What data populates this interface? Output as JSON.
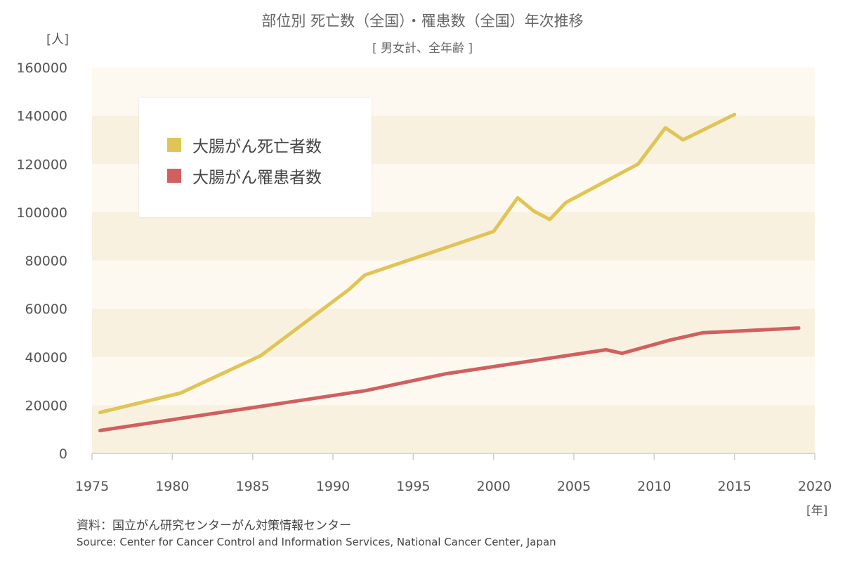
{
  "title": "部位別 死亡数（全国）・罹患数（全国）年次推移",
  "subtitle": "[ 男女計、全年齢 ]",
  "y_unit": "[人]",
  "x_unit": "[年]",
  "source_ja": "資料：国立がん研究センターがん対策情報センター",
  "source_en": "Source: Center for Cancer Control and Information Services, National Cancer Center, Japan",
  "colors": {
    "plot_bg": "#fdf9f0",
    "band": "#f8f1e0",
    "axis": "#cccccc",
    "series_yellow": "#e0c455",
    "series_red": "#d25f5f"
  },
  "chart_data": {
    "type": "line",
    "xlim": [
      1975,
      2020
    ],
    "ylim": [
      0,
      160000
    ],
    "x_ticks": [
      "1975",
      "1980",
      "1985",
      "1990",
      "1995",
      "2000",
      "2005",
      "2010",
      "2015",
      "2020"
    ],
    "y_ticks": [
      "0",
      "20000",
      "40000",
      "60000",
      "80000",
      "100000",
      "120000",
      "140000",
      "160000"
    ],
    "legend_position": "top-left",
    "series": [
      {
        "name": "大腸がん死亡者数",
        "color": "#e0c455",
        "points": [
          [
            1975.5,
            17000
          ],
          [
            1980.5,
            25000
          ],
          [
            1985.5,
            40500
          ],
          [
            1991,
            68000
          ],
          [
            1992,
            74000
          ],
          [
            2000,
            92000
          ],
          [
            2001.5,
            106000
          ],
          [
            2002.5,
            100500
          ],
          [
            2003.5,
            97000
          ],
          [
            2004.5,
            104000
          ],
          [
            2009,
            120000
          ],
          [
            2010.7,
            135000
          ],
          [
            2011.8,
            130000
          ],
          [
            2015,
            140500
          ]
        ]
      },
      {
        "name": "大腸がん罹患者数",
        "color": "#d25f5f",
        "points": [
          [
            1975.5,
            9500
          ],
          [
            1980.5,
            14500
          ],
          [
            1985.5,
            19500
          ],
          [
            1992,
            26000
          ],
          [
            1997,
            33000
          ],
          [
            2000,
            36000
          ],
          [
            2007,
            43000
          ],
          [
            2008,
            41500
          ],
          [
            2011,
            47000
          ],
          [
            2013,
            50000
          ],
          [
            2019,
            52000
          ]
        ]
      }
    ]
  }
}
